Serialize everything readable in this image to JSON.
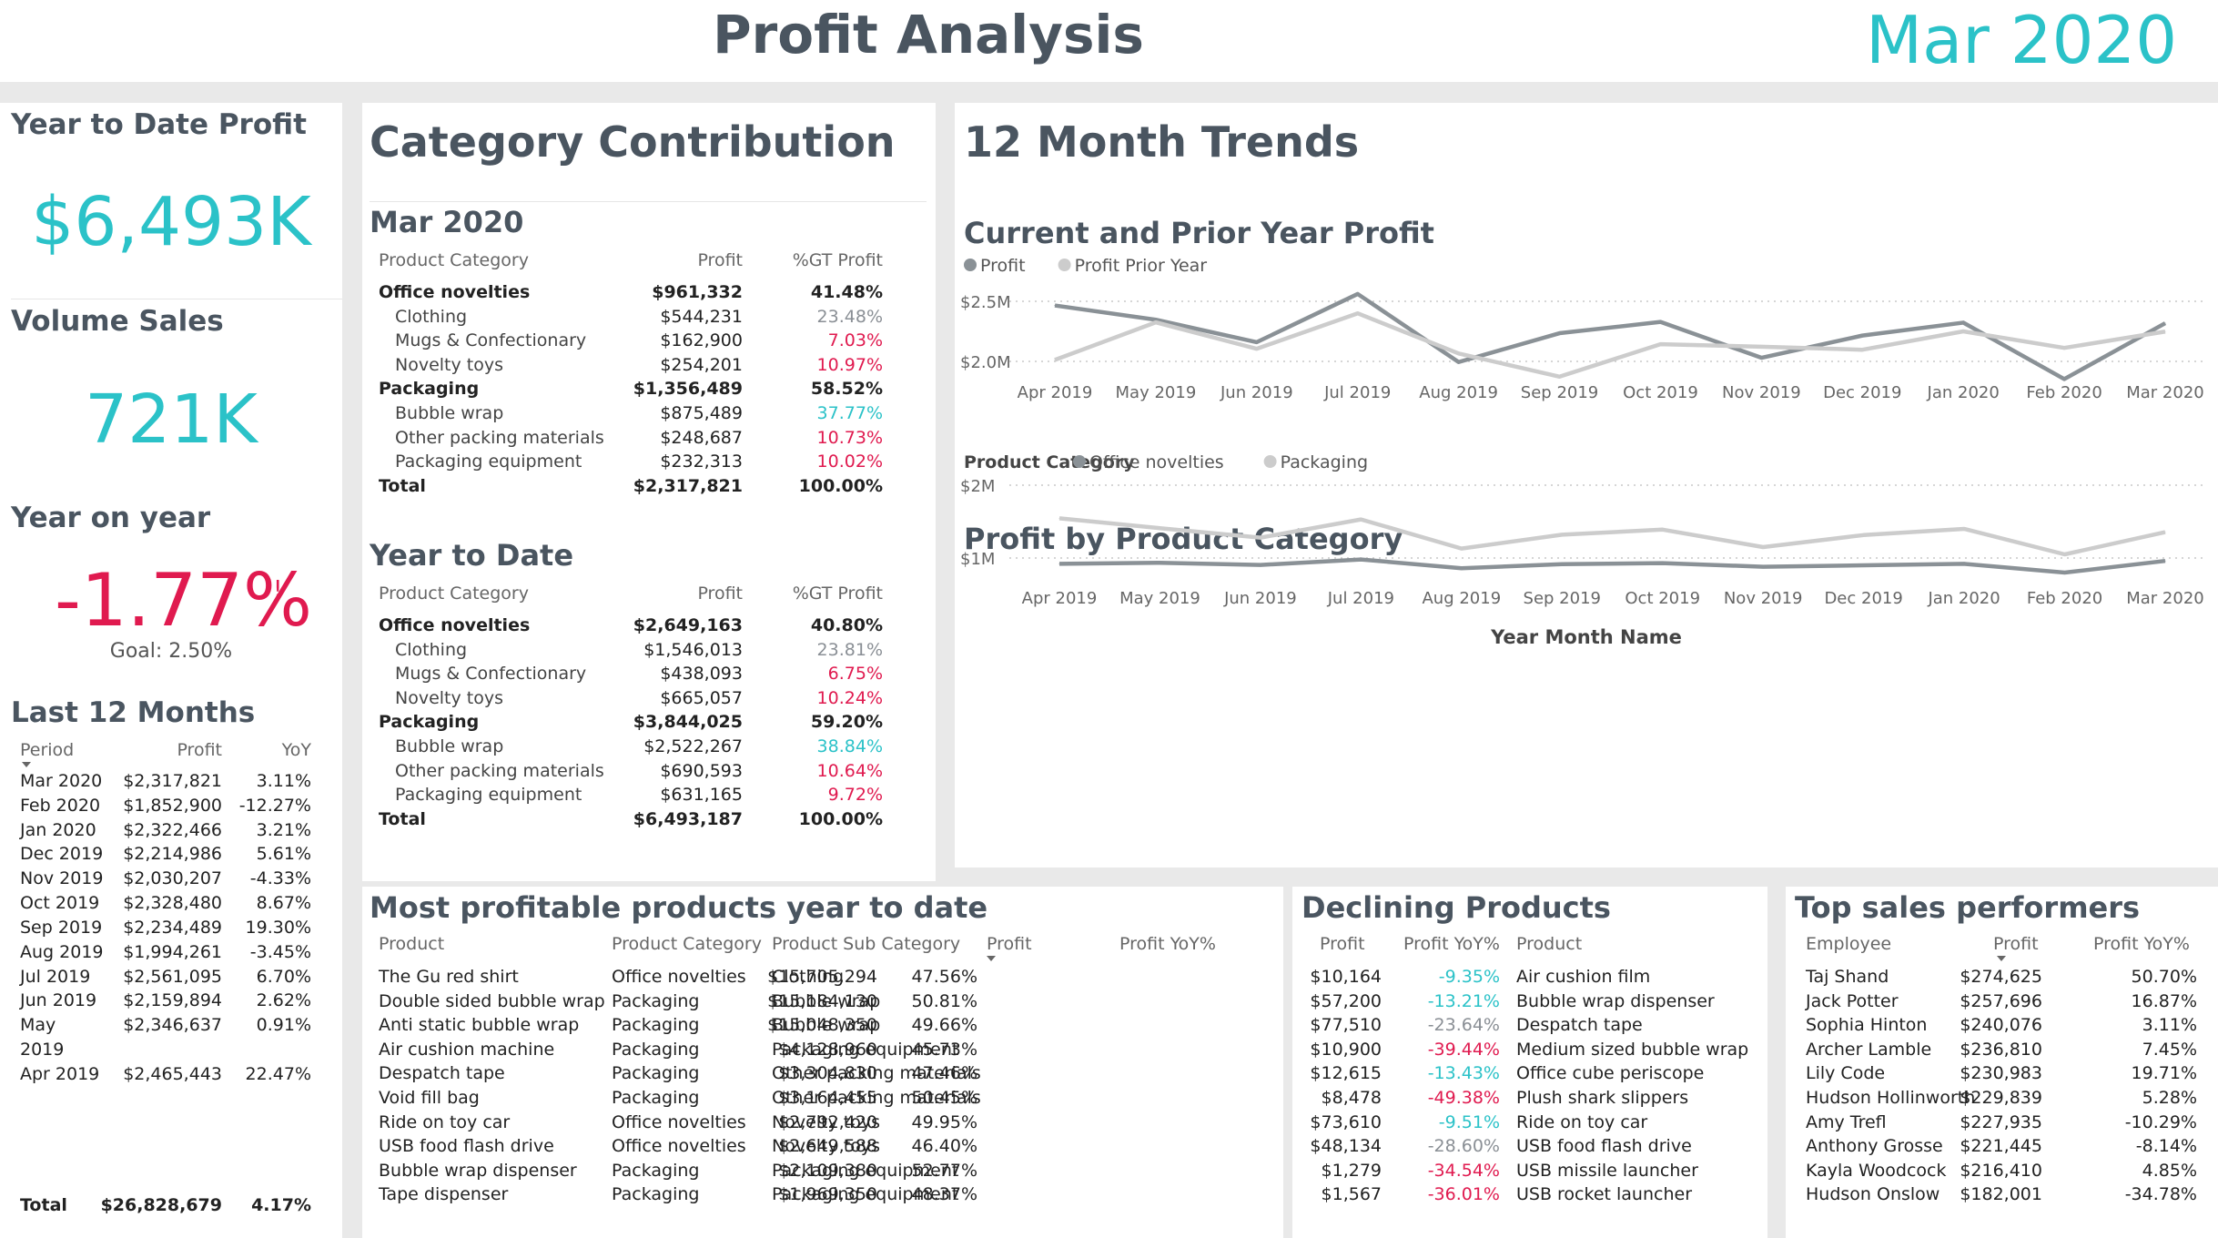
{
  "header": {
    "title": "Profit Analysis",
    "period": "Mar 2020"
  },
  "kpis": {
    "ytd_label": "Year to Date Profit",
    "ytd_value": "$6,493K",
    "vol_label": "Volume Sales",
    "vol_value": "721K",
    "yoy_label": "Year on year",
    "yoy_value": "-1.77%",
    "yoy_flag": "!",
    "goal": "Goal: 2.50%"
  },
  "last12": {
    "title": "Last 12 Months",
    "headers": [
      "Period",
      "Profit",
      "YoY"
    ],
    "rows": [
      [
        "Mar 2020",
        "$2,317,821",
        "3.11%"
      ],
      [
        "Feb 2020",
        "$1,852,900",
        "-12.27%"
      ],
      [
        "Jan 2020",
        "$2,322,466",
        "3.21%"
      ],
      [
        "Dec 2019",
        "$2,214,986",
        "5.61%"
      ],
      [
        "Nov 2019",
        "$2,030,207",
        "-4.33%"
      ],
      [
        "Oct 2019",
        "$2,328,480",
        "8.67%"
      ],
      [
        "Sep 2019",
        "$2,234,489",
        "19.30%"
      ],
      [
        "Aug 2019",
        "$1,994,261",
        "-3.45%"
      ],
      [
        "Jul 2019",
        "$2,561,095",
        "6.70%"
      ],
      [
        "Jun 2019",
        "$2,159,894",
        "2.62%"
      ],
      [
        "May",
        "$2,346,637",
        "0.91%"
      ],
      [
        "2019",
        "",
        ""
      ],
      [
        "Apr 2019",
        "$2,465,443",
        "22.47%"
      ]
    ],
    "total": [
      "Total",
      "$26,828,679",
      "4.17%"
    ]
  },
  "category": {
    "title": "Category Contribution",
    "headers": [
      "Product Category",
      "Profit",
      "%GT Profit"
    ],
    "mar": {
      "title": "Mar 2020",
      "rows": [
        {
          "name": "Office novelties",
          "profit": "$961,332",
          "pct": "41.48%",
          "lvl": 0,
          "c": "k"
        },
        {
          "name": "Clothing",
          "profit": "$544,231",
          "pct": "23.48%",
          "lvl": 1,
          "c": "g"
        },
        {
          "name": "Mugs & Confectionary",
          "profit": "$162,900",
          "pct": "7.03%",
          "lvl": 1,
          "c": "r"
        },
        {
          "name": "Novelty toys",
          "profit": "$254,201",
          "pct": "10.97%",
          "lvl": 1,
          "c": "r"
        },
        {
          "name": "Packaging",
          "profit": "$1,356,489",
          "pct": "58.52%",
          "lvl": 0,
          "c": "k"
        },
        {
          "name": "Bubble wrap",
          "profit": "$875,489",
          "pct": "37.77%",
          "lvl": 1,
          "c": "t"
        },
        {
          "name": "Other packing materials",
          "profit": "$248,687",
          "pct": "10.73%",
          "lvl": 1,
          "c": "r"
        },
        {
          "name": "Packaging equipment",
          "profit": "$232,313",
          "pct": "10.02%",
          "lvl": 1,
          "c": "r"
        },
        {
          "name": "Total",
          "profit": "$2,317,821",
          "pct": "100.00%",
          "lvl": 0,
          "c": "k"
        }
      ]
    },
    "ytd": {
      "title": "Year to Date",
      "rows": [
        {
          "name": "Office novelties",
          "profit": "$2,649,163",
          "pct": "40.80%",
          "lvl": 0,
          "c": "k"
        },
        {
          "name": "Clothing",
          "profit": "$1,546,013",
          "pct": "23.81%",
          "lvl": 1,
          "c": "g"
        },
        {
          "name": "Mugs & Confectionary",
          "profit": "$438,093",
          "pct": "6.75%",
          "lvl": 1,
          "c": "r"
        },
        {
          "name": "Novelty toys",
          "profit": "$665,057",
          "pct": "10.24%",
          "lvl": 1,
          "c": "r"
        },
        {
          "name": "Packaging",
          "profit": "$3,844,025",
          "pct": "59.20%",
          "lvl": 0,
          "c": "k"
        },
        {
          "name": "Bubble wrap",
          "profit": "$2,522,267",
          "pct": "38.84%",
          "lvl": 1,
          "c": "t"
        },
        {
          "name": "Other packing materials",
          "profit": "$690,593",
          "pct": "10.64%",
          "lvl": 1,
          "c": "r"
        },
        {
          "name": "Packaging equipment",
          "profit": "$631,165",
          "pct": "9.72%",
          "lvl": 1,
          "c": "r"
        },
        {
          "name": "Total",
          "profit": "$6,493,187",
          "pct": "100.00%",
          "lvl": 0,
          "c": "k"
        }
      ]
    }
  },
  "trends": {
    "title": "12 Month Trends",
    "chart1_title": "Current and Prior Year Profit",
    "chart2_title": "Profit by Product Category",
    "legend2_label": "Product Category",
    "x_axis_title": "Year Month Name"
  },
  "colors": {
    "dark_series": "#8a9196",
    "light_series": "#cccccc",
    "accent": "#2bc2c8",
    "negative": "#e01a4f"
  },
  "chart_data": [
    {
      "type": "line",
      "title": "Current and Prior Year Profit",
      "categories": [
        "Apr 2019",
        "May 2019",
        "Jun 2019",
        "Jul 2019",
        "Aug 2019",
        "Sep 2019",
        "Oct 2019",
        "Nov 2019",
        "Dec 2019",
        "Jan 2020",
        "Feb 2020",
        "Mar 2020"
      ],
      "series": [
        {
          "name": "Profit",
          "values": [
            2465443,
            2346637,
            2159894,
            2561095,
            1994261,
            2234489,
            2328480,
            2030207,
            2214986,
            2322466,
            1852900,
            2317821
          ]
        },
        {
          "name": "Profit Prior Year",
          "values": [
            2012000,
            2325000,
            2105000,
            2400000,
            2066000,
            1873000,
            2143000,
            2122000,
            2097000,
            2250000,
            2112000,
            2248000
          ]
        }
      ],
      "yticks": [
        "$2.0M",
        "$2.5M"
      ],
      "ylim": [
        1800000,
        2620000
      ],
      "grid": true,
      "legend": "top-left"
    },
    {
      "type": "line",
      "title": "Profit by Product Category",
      "xlabel": "Year Month Name",
      "categories": [
        "Apr 2019",
        "May 2019",
        "Jun 2019",
        "Jul 2019",
        "Aug 2019",
        "Sep 2019",
        "Oct 2019",
        "Nov 2019",
        "Dec 2019",
        "Jan 2020",
        "Feb 2020",
        "Mar 2020"
      ],
      "series": [
        {
          "name": "Office novelties",
          "values": [
            920000,
            935000,
            905000,
            980000,
            860000,
            915000,
            930000,
            880000,
            900000,
            920000,
            800000,
            960000
          ]
        },
        {
          "name": "Packaging",
          "values": [
            1545000,
            1410000,
            1280000,
            1530000,
            1130000,
            1320000,
            1390000,
            1150000,
            1315000,
            1400000,
            1050000,
            1356000
          ]
        }
      ],
      "yticks": [
        "$1M",
        "$2M"
      ],
      "ylim": [
        700000,
        2000000
      ],
      "grid": true,
      "legend": "top-left"
    }
  ],
  "products": {
    "title": "Most profitable products year to date",
    "headers": [
      "Product",
      "Product Category",
      "Product Sub Category",
      "Profit",
      "Profit YoY%"
    ],
    "rows": [
      [
        "The Gu red shirt",
        "Office novelties",
        "Clothing",
        "$15,705,294",
        "47.56%"
      ],
      [
        "Double sided bubble wrap",
        "Packaging",
        "Bubble wrap",
        "$15,184,130",
        "50.81%"
      ],
      [
        "Anti static bubble wrap",
        "Packaging",
        "Bubble wrap",
        "$15,048,350",
        "49.66%"
      ],
      [
        "Air cushion machine",
        "Packaging",
        "Packaging equipment",
        "$4,128,960",
        "45.73%"
      ],
      [
        "Despatch tape",
        "Packaging",
        "Other packing materials",
        "$3,304,830",
        "47.46%"
      ],
      [
        "Void fill bag",
        "Packaging",
        "Other packing materials",
        "$3,164,455",
        "50.45%"
      ],
      [
        "Ride on toy car",
        "Office novelties",
        "Novelty toys",
        "$2,792,420",
        "49.95%"
      ],
      [
        "USB food flash drive",
        "Office novelties",
        "Novelty toys",
        "$2,649,588",
        "46.40%"
      ],
      [
        "Bubble wrap dispenser",
        "Packaging",
        "Packaging equipment",
        "$2,109,380",
        "52.77%"
      ],
      [
        "Tape dispenser",
        "Packaging",
        "Packaging equipment",
        "$1,969,350",
        "48.37%"
      ]
    ]
  },
  "declining": {
    "title": "Declining Products",
    "headers": [
      "Profit",
      "Profit YoY%",
      "Product"
    ],
    "rows": [
      [
        "$10,164",
        "-9.35%",
        "Air cushion film",
        "t"
      ],
      [
        "$57,200",
        "-13.21%",
        "Bubble wrap dispenser",
        "t"
      ],
      [
        "$77,510",
        "-23.64%",
        "Despatch tape",
        "g"
      ],
      [
        "$10,900",
        "-39.44%",
        "Medium sized bubble wrap",
        "r"
      ],
      [
        "$12,615",
        "-13.43%",
        "Office cube periscope",
        "t"
      ],
      [
        "$8,478",
        "-49.38%",
        "Plush shark slippers",
        "r"
      ],
      [
        "$73,610",
        "-9.51%",
        "Ride on toy car",
        "t"
      ],
      [
        "$48,134",
        "-28.60%",
        "USB food flash drive",
        "g"
      ],
      [
        "$1,279",
        "-34.54%",
        "USB missile launcher",
        "r"
      ],
      [
        "$1,567",
        "-36.01%",
        "USB rocket launcher",
        "r"
      ]
    ]
  },
  "performers": {
    "title": "Top sales performers",
    "headers": [
      "Employee",
      "Profit",
      "Profit YoY%"
    ],
    "rows": [
      [
        "Taj Shand",
        "$274,625",
        "50.70%"
      ],
      [
        "Jack Potter",
        "$257,696",
        "16.87%"
      ],
      [
        "Sophia Hinton",
        "$240,076",
        "3.11%"
      ],
      [
        "Archer Lamble",
        "$236,810",
        "7.45%"
      ],
      [
        "Lily Code",
        "$230,983",
        "19.71%"
      ],
      [
        "Hudson Hollinworth",
        "$229,839",
        "5.28%"
      ],
      [
        "Amy Trefl",
        "$227,935",
        "-10.29%"
      ],
      [
        "Anthony Grosse",
        "$221,445",
        "-8.14%"
      ],
      [
        "Kayla Woodcock",
        "$216,410",
        "4.85%"
      ],
      [
        "Hudson Onslow",
        "$182,001",
        "-34.78%"
      ]
    ]
  }
}
